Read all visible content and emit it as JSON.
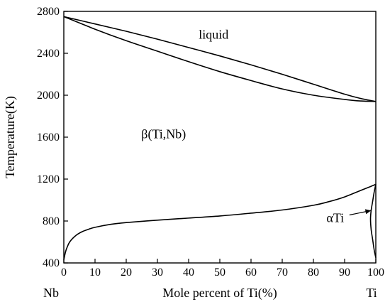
{
  "chart_data": {
    "type": "line",
    "title": "",
    "xlabel": "Mole percent of Ti(%)",
    "ylabel": "Temperature(K)",
    "xlim": [
      0,
      100
    ],
    "ylim": [
      400,
      2800
    ],
    "x_ticks": [
      0,
      10,
      20,
      30,
      40,
      50,
      60,
      70,
      80,
      90,
      100
    ],
    "y_ticks": [
      400,
      800,
      1200,
      1600,
      2000,
      2400,
      2800
    ],
    "end_labels": {
      "left": "Nb",
      "right": "Ti"
    },
    "grid": false,
    "legend": "none",
    "series": [
      {
        "x": [
          0,
          10,
          20,
          30,
          40,
          50,
          60,
          70,
          80,
          90,
          95,
          100
        ],
        "y": [
          2750,
          2680,
          2610,
          2535,
          2455,
          2375,
          2290,
          2200,
          2105,
          2010,
          1970,
          1940
        ]
      },
      {
        "x": [
          0,
          10,
          20,
          30,
          40,
          50,
          60,
          70,
          80,
          90,
          95,
          100
        ],
        "y": [
          2750,
          2630,
          2520,
          2420,
          2320,
          2225,
          2140,
          2060,
          2000,
          1960,
          1945,
          1940
        ]
      },
      {
        "x": [
          0,
          0.5,
          1,
          2,
          4,
          6,
          8,
          10,
          15,
          20,
          30,
          40,
          50,
          60,
          70,
          80,
          85,
          90,
          95,
          98,
          100
        ],
        "y": [
          430,
          500,
          545,
          605,
          665,
          700,
          722,
          740,
          768,
          785,
          808,
          828,
          848,
          875,
          905,
          950,
          985,
          1030,
          1090,
          1125,
          1150
        ]
      },
      {
        "x": [
          100,
          99.5,
          99,
          98.5,
          98.3,
          98.5,
          99,
          99.5,
          100
        ],
        "y": [
          1150,
          1080,
          990,
          900,
          820,
          720,
          620,
          520,
          450
        ]
      }
    ],
    "annotations": [
      {
        "text": "liquid",
        "x": 48,
        "y": 2540
      },
      {
        "text": "β(Ti,Nb)",
        "x": 32,
        "y": 1590
      },
      {
        "text": "αTi",
        "x": 87,
        "y": 790,
        "arrow_to": {
          "x": 98.5,
          "y": 900
        }
      }
    ]
  }
}
